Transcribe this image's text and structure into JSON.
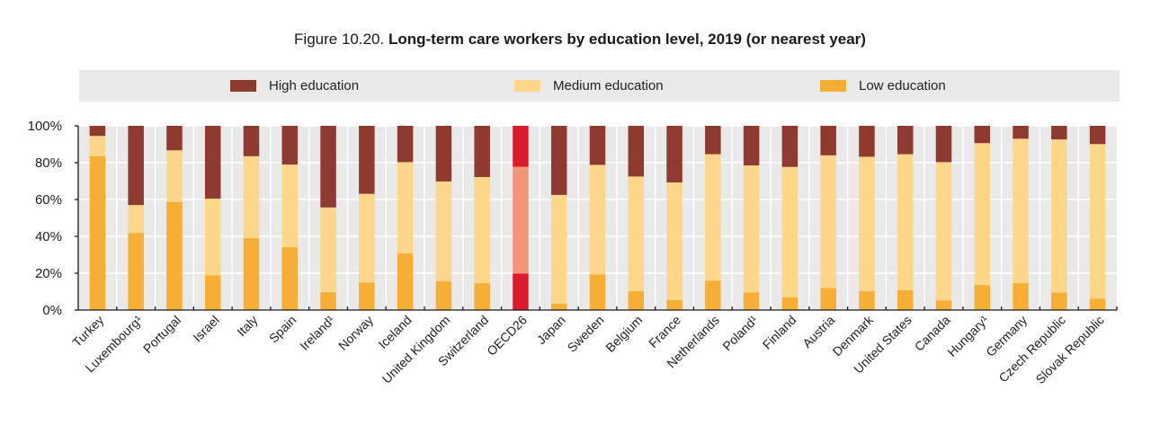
{
  "title": {
    "prefix": "Figure 10.20. ",
    "main": "Long-term care workers by education level, 2019 (or nearest year)"
  },
  "colors": {
    "high": "#8F3A2F",
    "medium": "#FCD78A",
    "low": "#F7AE35",
    "oecd_high": "#DC1A2B",
    "oecd_medium": "#F4957A",
    "oecd_low": "#DC1A2B",
    "plot_bg": "#e9e9e9",
    "grid": "#ffffff",
    "axis": "#1a1a1a"
  },
  "legend": [
    {
      "key": "high",
      "label": "High education"
    },
    {
      "key": "medium",
      "label": "Medium education"
    },
    {
      "key": "low",
      "label": "Low education"
    }
  ],
  "chart_data": {
    "type": "bar",
    "stacked": true,
    "title": "Figure 10.20. Long-term care workers by education level, 2019 (or nearest year)",
    "xlabel": "",
    "ylabel": "",
    "ylim": [
      0,
      100
    ],
    "yticks": [
      0,
      20,
      40,
      60,
      80,
      100
    ],
    "ytick_labels": [
      "0%",
      "20%",
      "40%",
      "60%",
      "80%",
      "100%"
    ],
    "grid": true,
    "legend_position": "top",
    "highlight_category": "OECD26",
    "categories": [
      "Turkey",
      "Luxembourg¹",
      "Portugal",
      "Israel",
      "Italy",
      "Spain",
      "Ireland¹",
      "Norway",
      "Iceland",
      "United Kingdom",
      "Switzerland",
      "OECD26",
      "Japan",
      "Sweden",
      "Belgium",
      "France",
      "Netherlands",
      "Poland¹",
      "Finland",
      "Austria",
      "Denmark",
      "United States",
      "Canada",
      "Hungary¹",
      "Germany",
      "Czech Republic",
      "Slovak Republic"
    ],
    "series": [
      {
        "name": "Low education",
        "key": "low",
        "values": [
          83.6,
          41.9,
          58.7,
          18.8,
          39.0,
          34.1,
          9.7,
          14.9,
          30.7,
          15.7,
          14.6,
          19.8,
          3.4,
          19.4,
          10.3,
          5.5,
          16.0,
          9.5,
          7.0,
          12.0,
          10.2,
          10.8,
          5.3,
          13.6,
          14.7,
          9.5,
          6.1
        ]
      },
      {
        "name": "Medium education",
        "key": "medium",
        "values": [
          10.9,
          15.1,
          28.0,
          41.7,
          44.5,
          44.9,
          46.0,
          48.2,
          49.6,
          54.1,
          57.6,
          58.0,
          59.1,
          59.4,
          62.2,
          63.8,
          68.6,
          69.0,
          70.7,
          72.0,
          73.0,
          73.8,
          75.0,
          77.0,
          78.3,
          83.1,
          84.0
        ]
      },
      {
        "name": "High education",
        "key": "high",
        "values": [
          5.5,
          43.0,
          13.3,
          39.5,
          16.5,
          21.0,
          44.3,
          36.9,
          19.7,
          30.2,
          27.8,
          22.2,
          37.5,
          21.2,
          27.5,
          30.7,
          15.4,
          21.5,
          22.3,
          16.0,
          16.8,
          15.4,
          19.7,
          9.4,
          7.0,
          7.4,
          9.9
        ]
      }
    ]
  }
}
